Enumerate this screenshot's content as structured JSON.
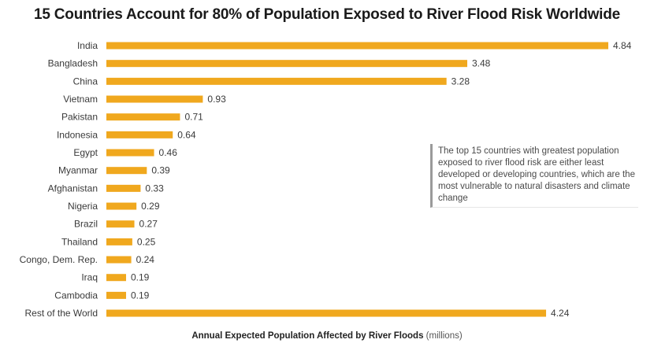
{
  "chart_data": {
    "type": "bar",
    "orientation": "horizontal",
    "title": "15 Countries Account for 80% of Population Exposed to River Flood Risk Worldwide",
    "xlabel": "Annual Expected Population Affected by River Floods",
    "xlabel_unit": "(millions)",
    "ylabel": "",
    "categories": [
      "India",
      "Bangladesh",
      "China",
      "Vietnam",
      "Pakistan",
      "Indonesia",
      "Egypt",
      "Myanmar",
      "Afghanistan",
      "Nigeria",
      "Brazil",
      "Thailand",
      "Congo, Dem. Rep.",
      "Iraq",
      "Cambodia",
      "Rest of the World"
    ],
    "values": [
      4.84,
      3.48,
      3.28,
      0.93,
      0.71,
      0.64,
      0.46,
      0.39,
      0.33,
      0.29,
      0.27,
      0.25,
      0.24,
      0.19,
      0.19,
      4.24
    ],
    "value_labels": [
      "4.84",
      "3.48",
      "3.28",
      "0.93",
      "0.71",
      "0.64",
      "0.46",
      "0.39",
      "0.33",
      "0.29",
      "0.27",
      "0.25",
      "0.24",
      "0.19",
      "0.19",
      "4.24"
    ],
    "xlim": [
      0,
      4.84
    ],
    "grid": false,
    "legend": "none",
    "bar_color": "#f0a81e",
    "annotation": "The top 15 countries with greatest population exposed to river flood risk are either least developed or developing countries, which are the most vulnerable to natural disasters and climate change"
  }
}
